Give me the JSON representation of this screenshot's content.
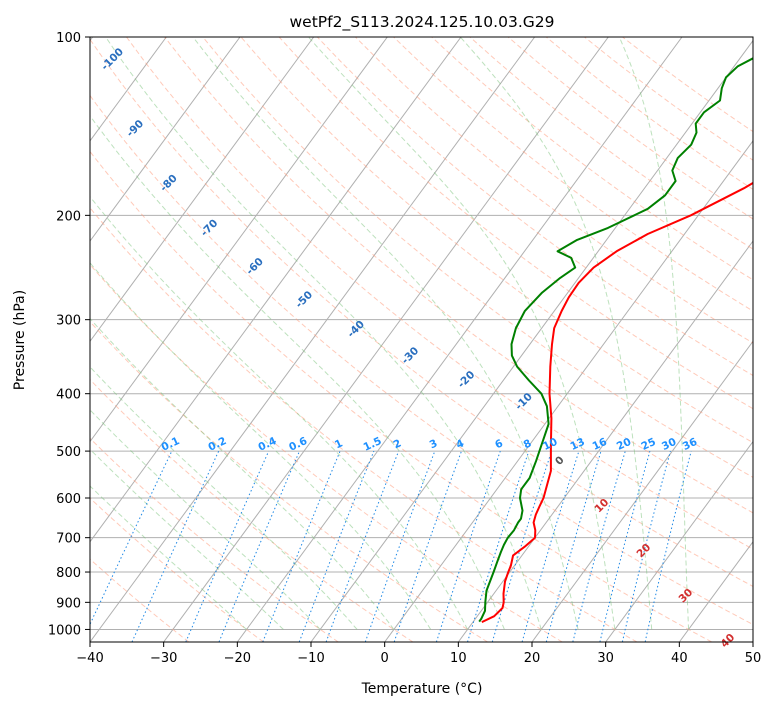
{
  "chart_data": {
    "type": "line",
    "title": "wetPf2_S113.2024.125.10.03.G29",
    "xlabel": "Temperature (°C)",
    "ylabel": "Pressure (hPa)",
    "xlim": [
      -40,
      50
    ],
    "ylim": [
      1050,
      100
    ],
    "y_scale": "log",
    "skew": true,
    "grid": true,
    "x_ticks": [
      -40,
      -30,
      -20,
      -10,
      0,
      10,
      20,
      30,
      40,
      50
    ],
    "y_ticks": [
      100,
      200,
      300,
      400,
      500,
      600,
      700,
      800,
      900,
      1000
    ],
    "isotherm_labels": [
      "-100",
      "-90",
      "-80",
      "-70",
      "-60",
      "-50",
      "-40",
      "-30",
      "-20",
      "-10"
    ],
    "mixing_ratio_labels": [
      "0.1",
      "0.2",
      "0.4",
      "0.6",
      "1",
      "1.5",
      "2",
      "3",
      "4",
      "6",
      "8",
      "10",
      "13",
      "16",
      "20",
      "25",
      "30",
      "36"
    ],
    "dry_adiabat_labels": [
      "0",
      "10",
      "20",
      "30",
      "40"
    ],
    "series": [
      {
        "color": "#ff0000",
        "x": [
          11.2,
          12.3,
          12.6,
          12.2,
          11.3,
          10.3,
          9.8,
          9.5,
          8.8,
          9.5,
          10.0,
          9.3,
          8.3,
          7.8,
          7.5,
          7.2,
          5.5,
          3.0,
          0.3,
          -2.4,
          -5.0,
          -7.0,
          -8.3,
          -9.0,
          -9.4,
          -9.5,
          -9.0,
          -7.5,
          -5.0,
          -1.0,
          3.5,
          7.5,
          9.7,
          11.5,
          13.0,
          14.5
        ],
        "y": [
          972,
          950,
          920,
          900,
          870,
          830,
          800,
          780,
          750,
          725,
          700,
          680,
          660,
          640,
          620,
          600,
          540,
          490,
          440,
          400,
          360,
          330,
          310,
          290,
          275,
          260,
          245,
          230,
          215,
          200,
          180,
          160,
          145,
          130,
          115,
          100
        ]
      },
      {
        "color": "#008000",
        "x": [
          10.8,
          10.8,
          10.5,
          9.7,
          8.7,
          7.8,
          7.3,
          6.8,
          6.5,
          6.3,
          6.4,
          6.2,
          6.2,
          5.6,
          4.0,
          3.3,
          3.3,
          2.5,
          1.4,
          0.5,
          -1.5,
          -3.5,
          -6.5,
          -9.5,
          -11.3,
          -12.5,
          -13.5,
          -14.0,
          -13.5,
          -12.5,
          -11.5,
          -13.0,
          -15.5,
          -14.0,
          -11.0,
          -7.5,
          -6.5,
          -6.5,
          -8.0,
          -8.5,
          -8.0,
          -8.5,
          -9.5,
          -9.5,
          -8.5,
          -9.5,
          -10.0,
          -9.5,
          -8.0,
          -5.0
        ],
        "y": [
          970,
          960,
          930,
          900,
          860,
          800,
          770,
          740,
          720,
          700,
          680,
          660,
          650,
          630,
          600,
          580,
          555,
          520,
          480,
          450,
          420,
          400,
          380,
          360,
          345,
          330,
          310,
          290,
          270,
          255,
          245,
          236,
          230,
          220,
          210,
          195,
          185,
          175,
          168,
          160,
          152,
          145,
          140,
          134,
          128,
          122,
          117,
          112,
          108,
          100
        ]
      }
    ]
  }
}
